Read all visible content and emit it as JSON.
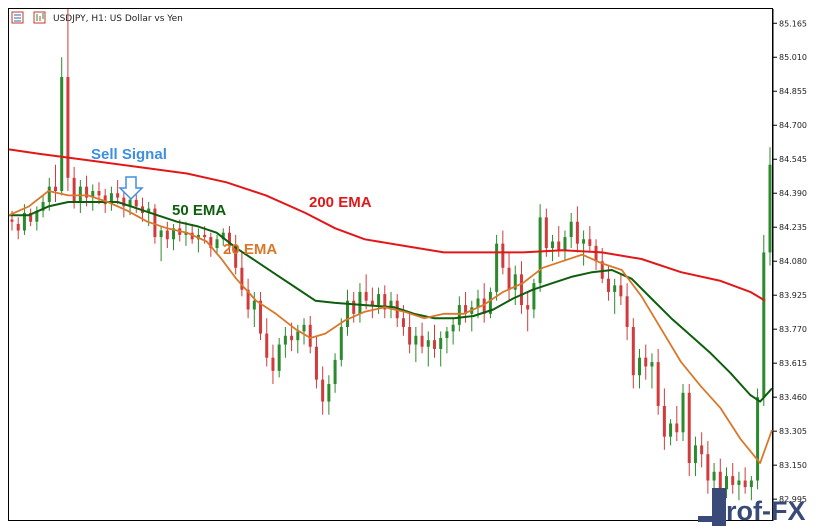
{
  "header": {
    "title": "USDJPY, H1:  US Dollar vs Yen"
  },
  "annotations": {
    "sell_signal": "Sell Signal",
    "ema200": "200 EMA",
    "ema50": "50 EMA",
    "ema20": "20 EMA"
  },
  "watermark": {
    "text": "Prof-FX"
  },
  "colors": {
    "bull": "#2b8a2b",
    "bear": "#d13b3b",
    "ema200": "#e21818",
    "ema50": "#0e5e0e",
    "ema20": "#d9782b",
    "sell_signal": "#3d8fe3",
    "grid": "#e8e8e8"
  },
  "chart_data": {
    "type": "candlestick",
    "symbol": "USDJPY",
    "timeframe": "H1",
    "ylim": [
      82.9,
      85.23
    ],
    "yticks": [
      "85.165",
      "85.010",
      "84.855",
      "84.700",
      "84.545",
      "84.390",
      "84.235",
      "84.080",
      "83.925",
      "83.770",
      "83.615",
      "83.460",
      "83.305",
      "83.150",
      "82.995"
    ],
    "ema200": [
      [
        0,
        84.59
      ],
      [
        30,
        84.57
      ],
      [
        80,
        84.54
      ],
      [
        130,
        84.51
      ],
      [
        180,
        84.48
      ],
      [
        220,
        84.44
      ],
      [
        260,
        84.38
      ],
      [
        300,
        84.3
      ],
      [
        330,
        84.23
      ],
      [
        360,
        84.18
      ],
      [
        400,
        84.15
      ],
      [
        440,
        84.12
      ],
      [
        480,
        84.12
      ],
      [
        520,
        84.12
      ],
      [
        560,
        84.13
      ],
      [
        600,
        84.12
      ],
      [
        640,
        84.09
      ],
      [
        680,
        84.03
      ],
      [
        720,
        83.99
      ],
      [
        750,
        83.94
      ],
      [
        765,
        83.9
      ]
    ],
    "ema50": [
      [
        0,
        84.29
      ],
      [
        20,
        84.29
      ],
      [
        40,
        84.33
      ],
      [
        60,
        84.35
      ],
      [
        90,
        84.35
      ],
      [
        110,
        84.35
      ],
      [
        130,
        84.32
      ],
      [
        150,
        84.29
      ],
      [
        170,
        84.26
      ],
      [
        190,
        84.24
      ],
      [
        210,
        84.21
      ],
      [
        230,
        84.14
      ],
      [
        250,
        84.08
      ],
      [
        270,
        84.02
      ],
      [
        290,
        83.96
      ],
      [
        310,
        83.9
      ],
      [
        330,
        83.89
      ],
      [
        360,
        83.88
      ],
      [
        390,
        83.87
      ],
      [
        410,
        83.84
      ],
      [
        430,
        83.82
      ],
      [
        450,
        83.82
      ],
      [
        470,
        83.83
      ],
      [
        490,
        83.86
      ],
      [
        510,
        83.91
      ],
      [
        530,
        83.95
      ],
      [
        550,
        83.98
      ],
      [
        570,
        84.01
      ],
      [
        590,
        84.03
      ],
      [
        610,
        84.04
      ],
      [
        630,
        84.0
      ],
      [
        650,
        83.91
      ],
      [
        670,
        83.82
      ],
      [
        690,
        83.74
      ],
      [
        710,
        83.66
      ],
      [
        730,
        83.57
      ],
      [
        750,
        83.47
      ],
      [
        760,
        83.44
      ],
      [
        772,
        83.5
      ]
    ],
    "ema20": [
      [
        0,
        84.29
      ],
      [
        20,
        84.33
      ],
      [
        40,
        84.4
      ],
      [
        60,
        84.38
      ],
      [
        80,
        84.38
      ],
      [
        100,
        84.35
      ],
      [
        120,
        84.31
      ],
      [
        140,
        84.26
      ],
      [
        160,
        84.23
      ],
      [
        180,
        84.21
      ],
      [
        200,
        84.17
      ],
      [
        215,
        84.09
      ],
      [
        230,
        84.0
      ],
      [
        250,
        83.9
      ],
      [
        270,
        83.84
      ],
      [
        290,
        83.77
      ],
      [
        305,
        83.73
      ],
      [
        320,
        83.75
      ],
      [
        340,
        83.81
      ],
      [
        360,
        83.85
      ],
      [
        380,
        83.87
      ],
      [
        400,
        83.85
      ],
      [
        420,
        83.82
      ],
      [
        440,
        83.84
      ],
      [
        460,
        83.84
      ],
      [
        480,
        83.88
      ],
      [
        500,
        83.94
      ],
      [
        520,
        83.98
      ],
      [
        540,
        84.05
      ],
      [
        560,
        84.08
      ],
      [
        580,
        84.11
      ],
      [
        600,
        84.07
      ],
      [
        620,
        84.04
      ],
      [
        640,
        83.92
      ],
      [
        660,
        83.77
      ],
      [
        680,
        83.62
      ],
      [
        700,
        83.51
      ],
      [
        720,
        83.41
      ],
      [
        740,
        83.27
      ],
      [
        760,
        83.16
      ],
      [
        772,
        83.31
      ]
    ],
    "candles": [
      [
        84.27,
        84.31,
        84.22,
        84.26
      ],
      [
        84.25,
        84.28,
        84.18,
        84.22
      ],
      [
        84.22,
        84.34,
        84.2,
        84.3
      ],
      [
        84.3,
        84.32,
        84.24,
        84.26
      ],
      [
        84.26,
        84.33,
        84.22,
        84.31
      ],
      [
        84.31,
        84.38,
        84.28,
        84.35
      ],
      [
        84.35,
        84.46,
        84.31,
        84.42
      ],
      [
        84.42,
        84.52,
        84.35,
        84.4
      ],
      [
        84.4,
        85.01,
        84.38,
        84.92
      ],
      [
        84.92,
        85.23,
        84.4,
        84.46
      ],
      [
        84.46,
        84.51,
        84.32,
        84.35
      ],
      [
        84.35,
        84.45,
        84.3,
        84.42
      ],
      [
        84.42,
        84.47,
        84.33,
        84.37
      ],
      [
        84.37,
        84.43,
        84.31,
        84.4
      ],
      [
        84.4,
        84.44,
        84.34,
        84.38
      ],
      [
        84.38,
        84.41,
        84.3,
        84.34
      ],
      [
        84.34,
        84.42,
        84.31,
        84.39
      ],
      [
        84.39,
        84.45,
        84.34,
        84.37
      ],
      [
        84.37,
        84.4,
        84.28,
        84.33
      ],
      [
        84.33,
        84.39,
        84.29,
        84.36
      ],
      [
        84.36,
        84.4,
        84.3,
        84.33
      ],
      [
        84.33,
        84.37,
        84.26,
        84.3
      ],
      [
        84.3,
        84.35,
        84.24,
        84.32
      ],
      [
        84.32,
        84.34,
        84.16,
        84.19
      ],
      [
        84.19,
        84.24,
        84.08,
        84.22
      ],
      [
        84.22,
        84.26,
        84.14,
        84.18
      ],
      [
        84.18,
        84.25,
        84.13,
        84.23
      ],
      [
        84.23,
        84.27,
        84.17,
        84.2
      ],
      [
        84.2,
        84.26,
        84.15,
        84.21
      ],
      [
        84.21,
        84.25,
        84.16,
        84.18
      ],
      [
        84.18,
        84.23,
        84.12,
        84.2
      ],
      [
        84.2,
        84.24,
        84.16,
        84.19
      ],
      [
        84.19,
        84.21,
        84.1,
        84.14
      ],
      [
        84.14,
        84.2,
        84.11,
        84.18
      ],
      [
        84.18,
        84.23,
        84.15,
        84.21
      ],
      [
        84.21,
        84.24,
        84.12,
        84.15
      ],
      [
        84.15,
        84.2,
        84.02,
        84.05
      ],
      [
        84.05,
        84.12,
        83.92,
        83.95
      ],
      [
        83.95,
        84.0,
        83.82,
        83.86
      ],
      [
        83.86,
        83.94,
        83.78,
        83.9
      ],
      [
        83.9,
        83.94,
        83.72,
        83.75
      ],
      [
        83.75,
        83.82,
        83.6,
        83.64
      ],
      [
        83.64,
        83.7,
        83.52,
        83.58
      ],
      [
        83.58,
        83.73,
        83.55,
        83.7
      ],
      [
        83.7,
        83.78,
        83.64,
        83.74
      ],
      [
        83.74,
        83.8,
        83.67,
        83.72
      ],
      [
        83.72,
        83.79,
        83.66,
        83.76
      ],
      [
        83.76,
        83.82,
        83.7,
        83.79
      ],
      [
        83.79,
        83.83,
        83.66,
        83.69
      ],
      [
        83.69,
        83.74,
        83.5,
        83.54
      ],
      [
        83.54,
        83.6,
        83.38,
        83.44
      ],
      [
        83.44,
        83.56,
        83.38,
        83.52
      ],
      [
        83.52,
        83.66,
        83.48,
        83.63
      ],
      [
        83.63,
        83.82,
        83.6,
        83.78
      ],
      [
        83.78,
        83.95,
        83.74,
        83.9
      ],
      [
        83.9,
        83.94,
        83.8,
        83.84
      ],
      [
        83.84,
        83.98,
        83.8,
        83.94
      ],
      [
        83.94,
        84.02,
        83.86,
        83.9
      ],
      [
        83.9,
        83.96,
        83.82,
        83.88
      ],
      [
        83.88,
        83.96,
        83.84,
        83.93
      ],
      [
        83.93,
        83.97,
        83.82,
        83.86
      ],
      [
        83.86,
        83.94,
        83.82,
        83.9
      ],
      [
        83.9,
        83.93,
        83.78,
        83.82
      ],
      [
        83.82,
        83.88,
        83.74,
        83.78
      ],
      [
        83.78,
        83.84,
        83.66,
        83.7
      ],
      [
        83.7,
        83.78,
        83.62,
        83.74
      ],
      [
        83.74,
        83.8,
        83.66,
        83.69
      ],
      [
        83.69,
        83.76,
        83.6,
        83.72
      ],
      [
        83.72,
        83.79,
        83.64,
        83.68
      ],
      [
        83.68,
        83.76,
        83.6,
        83.73
      ],
      [
        83.73,
        83.78,
        83.66,
        83.76
      ],
      [
        83.76,
        83.82,
        83.7,
        83.79
      ],
      [
        83.79,
        83.92,
        83.76,
        83.88
      ],
      [
        83.88,
        83.94,
        83.8,
        83.84
      ],
      [
        83.84,
        83.9,
        83.76,
        83.87
      ],
      [
        83.87,
        83.95,
        83.82,
        83.91
      ],
      [
        83.91,
        83.98,
        83.8,
        83.84
      ],
      [
        83.84,
        83.96,
        83.82,
        83.94
      ],
      [
        83.94,
        84.2,
        83.9,
        84.16
      ],
      [
        84.16,
        84.22,
        84.02,
        84.05
      ],
      [
        84.05,
        84.12,
        83.9,
        83.95
      ],
      [
        83.95,
        84.06,
        83.88,
        84.02
      ],
      [
        84.02,
        84.08,
        83.84,
        83.88
      ],
      [
        83.88,
        83.94,
        83.76,
        83.86
      ],
      [
        83.86,
        84.0,
        83.82,
        83.98
      ],
      [
        83.98,
        84.34,
        83.94,
        84.28
      ],
      [
        84.28,
        84.32,
        84.1,
        84.14
      ],
      [
        84.14,
        84.2,
        84.08,
        84.17
      ],
      [
        84.17,
        84.24,
        84.1,
        84.13
      ],
      [
        84.13,
        84.22,
        84.08,
        84.19
      ],
      [
        84.19,
        84.3,
        84.14,
        84.26
      ],
      [
        84.26,
        84.33,
        84.12,
        84.16
      ],
      [
        84.16,
        84.22,
        84.06,
        84.18
      ],
      [
        84.18,
        84.24,
        84.12,
        84.15
      ],
      [
        84.15,
        84.18,
        84.04,
        84.08
      ],
      [
        84.08,
        84.14,
        83.98,
        84.0
      ],
      [
        84.0,
        84.06,
        83.9,
        83.94
      ],
      [
        83.94,
        84.0,
        83.84,
        83.97
      ],
      [
        83.97,
        84.02,
        83.88,
        83.92
      ],
      [
        83.92,
        83.98,
        83.72,
        83.78
      ],
      [
        83.78,
        83.82,
        83.5,
        83.56
      ],
      [
        83.56,
        83.68,
        83.5,
        83.64
      ],
      [
        83.64,
        83.7,
        83.54,
        83.6
      ],
      [
        83.6,
        83.66,
        83.5,
        83.62
      ],
      [
        83.62,
        83.68,
        83.38,
        83.42
      ],
      [
        83.42,
        83.5,
        83.22,
        83.28
      ],
      [
        83.28,
        83.36,
        83.24,
        83.34
      ],
      [
        83.34,
        83.42,
        83.26,
        83.3
      ],
      [
        83.3,
        83.52,
        83.26,
        83.48
      ],
      [
        83.48,
        83.52,
        83.1,
        83.16
      ],
      [
        83.16,
        83.28,
        83.1,
        83.24
      ],
      [
        83.24,
        83.3,
        83.14,
        83.2
      ],
      [
        83.2,
        83.26,
        83.02,
        83.08
      ],
      [
        83.08,
        83.16,
        83.0,
        83.12
      ],
      [
        83.12,
        83.18,
        82.99,
        83.04
      ],
      [
        83.04,
        83.14,
        83.0,
        83.1
      ],
      [
        83.1,
        83.16,
        83.02,
        83.06
      ],
      [
        83.06,
        83.12,
        82.99,
        83.08
      ],
      [
        83.08,
        83.14,
        83.02,
        83.05
      ],
      [
        83.05,
        83.1,
        82.99,
        83.08
      ],
      [
        83.08,
        83.5,
        83.04,
        83.46
      ],
      [
        83.46,
        84.2,
        83.42,
        84.12
      ],
      [
        84.12,
        84.6,
        84.06,
        84.52
      ]
    ]
  }
}
